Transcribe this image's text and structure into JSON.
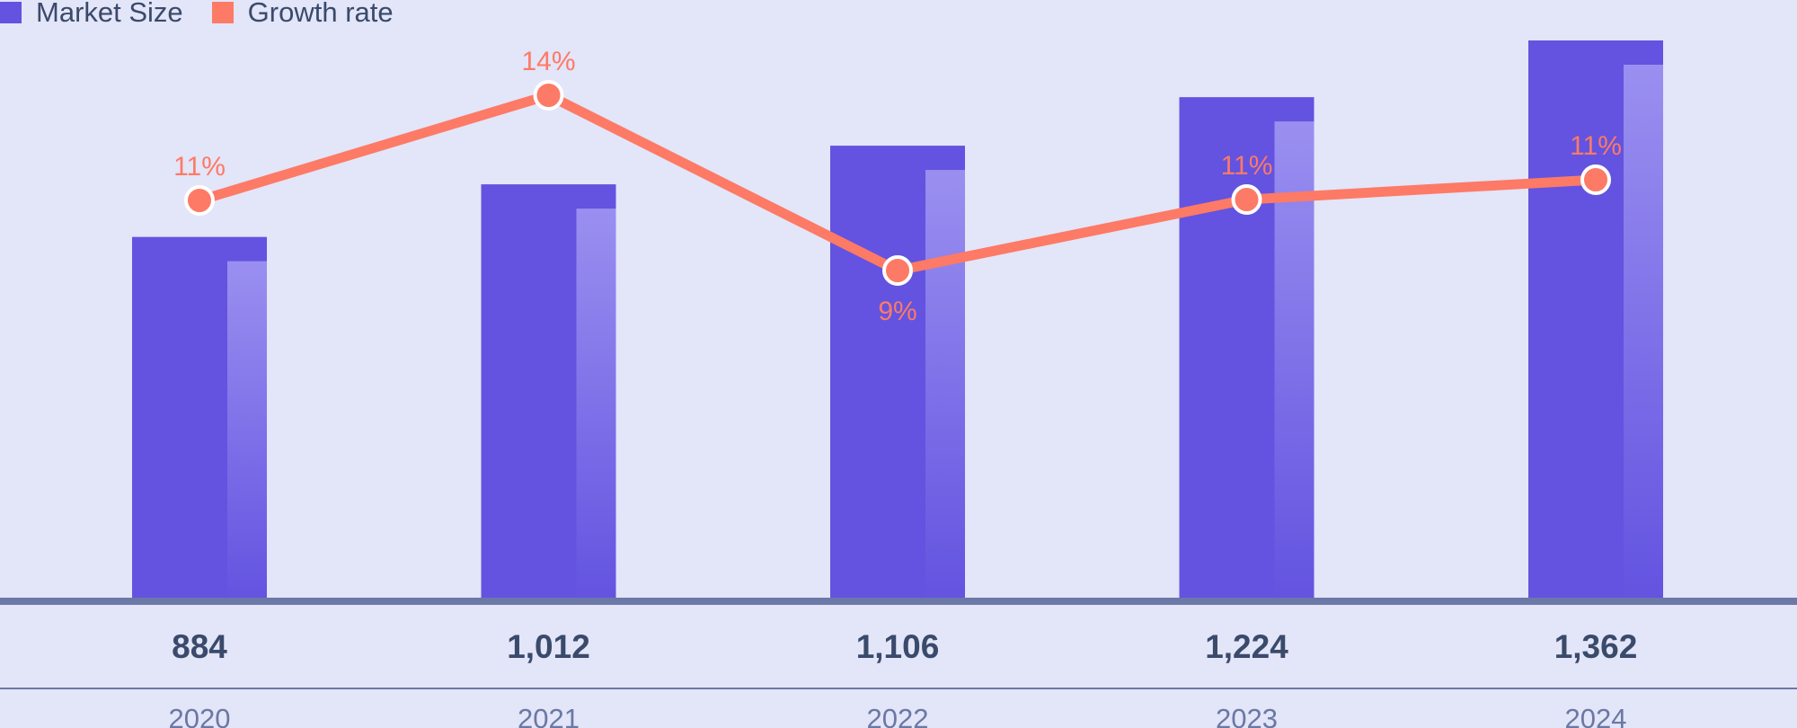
{
  "legend": {
    "bar_label": "Market Size",
    "line_label": "Growth rate"
  },
  "colors": {
    "background": "#e3e5f8",
    "bar": "#6353e0",
    "bar_highlight": "#9a8ff0",
    "line": "#fd7a66",
    "baseline": "#6b78a8",
    "text": "#3a4a6b",
    "year_text": "#6b78a3"
  },
  "chart_data": {
    "type": "bar",
    "categories": [
      "2020",
      "2021",
      "2022",
      "2023",
      "2024"
    ],
    "series": [
      {
        "name": "Market Size",
        "type": "bar",
        "values": [
          884,
          1012,
          1106,
          1224,
          1362
        ],
        "labels": [
          "884",
          "1,012",
          "1,106",
          "1,224",
          "1,362"
        ]
      },
      {
        "name": "Growth rate",
        "type": "line",
        "values": [
          11,
          14,
          9,
          11,
          11
        ],
        "labels": [
          "11%",
          "14%",
          "9%",
          "11%",
          "11%"
        ]
      }
    ],
    "grid": false,
    "legend_position": "top-left"
  }
}
